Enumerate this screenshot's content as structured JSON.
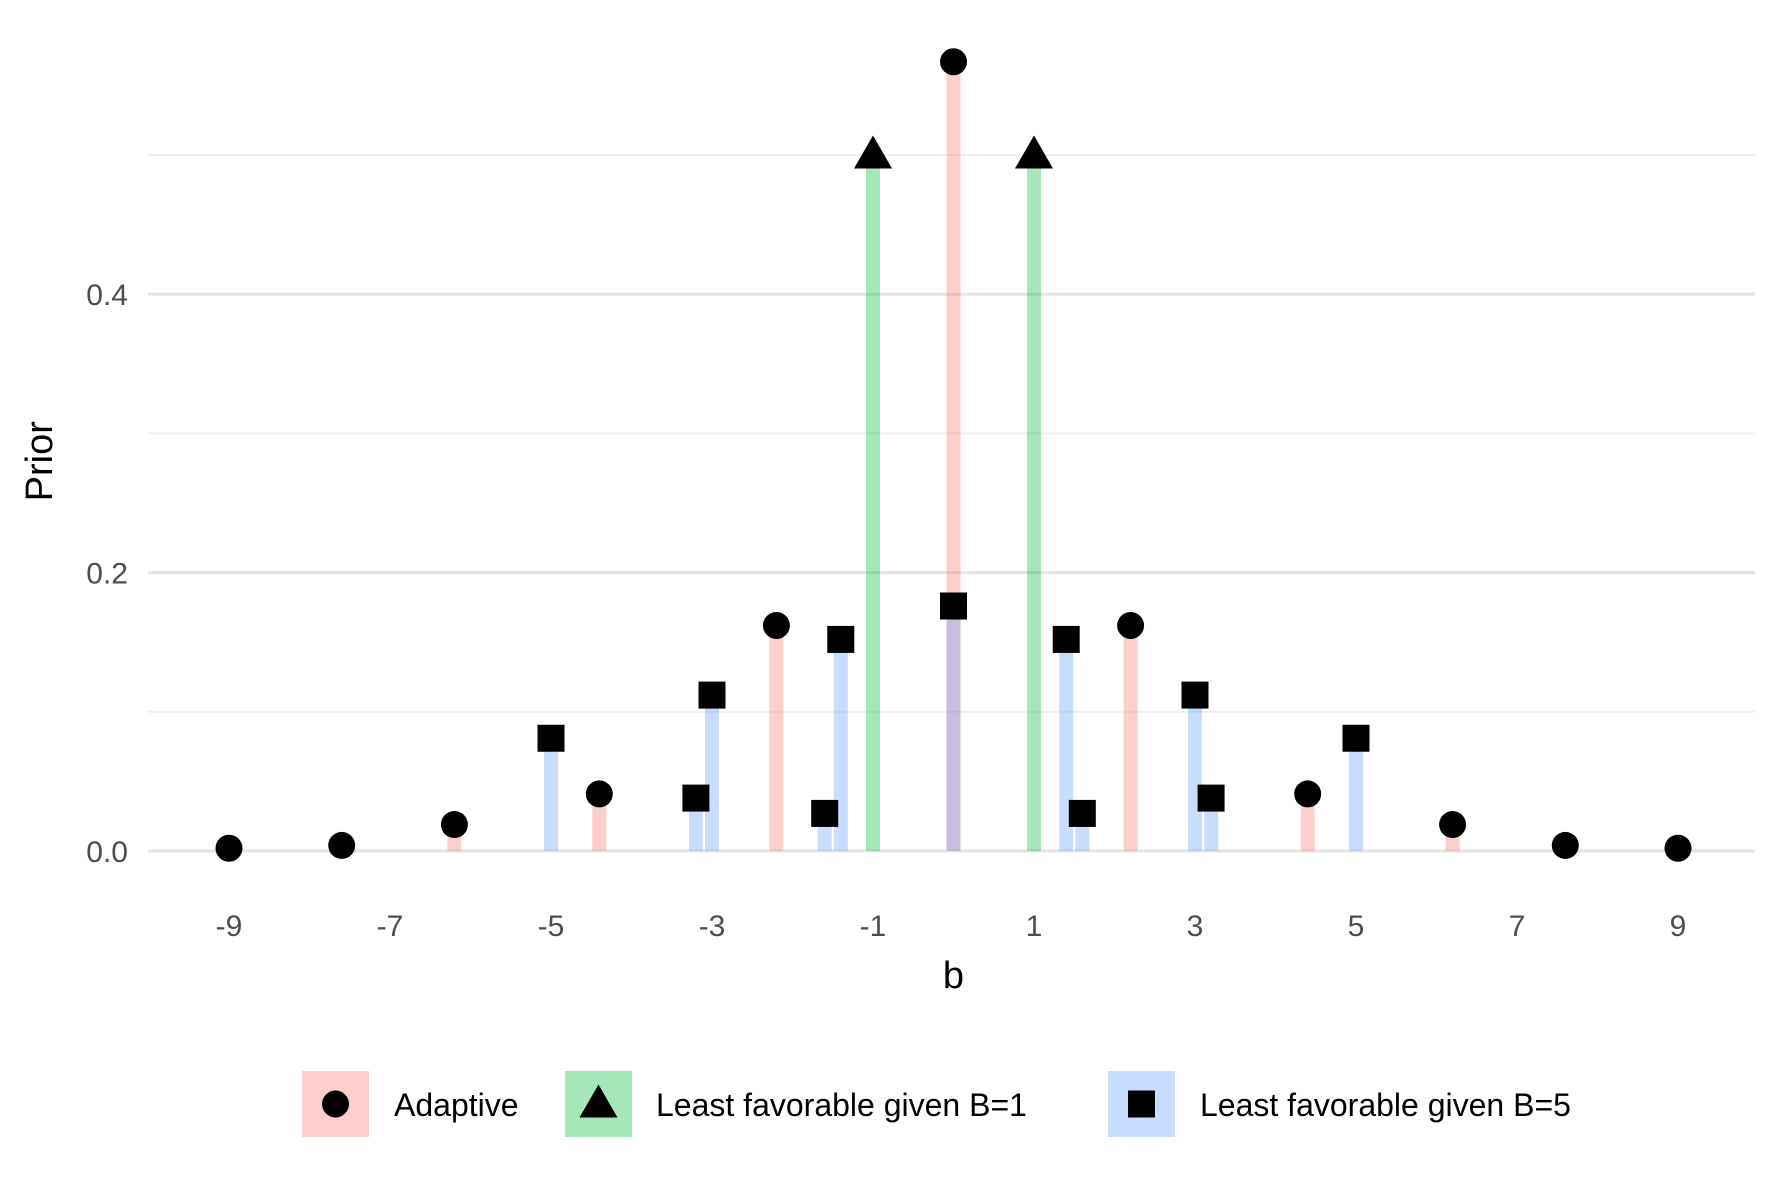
{
  "chart_data": {
    "type": "scatter",
    "xlabel": "b",
    "ylabel": "Prior",
    "xlim": [
      -10,
      10
    ],
    "ylim": [
      -0.02,
      0.57
    ],
    "xticks": [
      -9,
      -7,
      -5,
      -3,
      -1,
      1,
      3,
      5,
      7,
      9
    ],
    "xtick_labels": [
      "-9",
      "-7",
      "-5",
      "-3",
      "-1",
      "1",
      "3",
      "5",
      "7",
      "9"
    ],
    "yticks": [
      0.0,
      0.2,
      0.4
    ],
    "ytick_labels": [
      "0.0",
      "0.2",
      "0.4"
    ],
    "yminor": [
      0.1,
      0.3,
      0.5
    ],
    "grid": true,
    "legend_position": "bottom",
    "series": [
      {
        "name": "Adaptive",
        "marker": "circle",
        "color": "#F8766D",
        "points": [
          {
            "x": -9.0,
            "y": 0.002
          },
          {
            "x": -7.6,
            "y": 0.004
          },
          {
            "x": -6.2,
            "y": 0.019
          },
          {
            "x": -4.4,
            "y": 0.041
          },
          {
            "x": -2.2,
            "y": 0.162
          },
          {
            "x": 0.0,
            "y": 0.567
          },
          {
            "x": 2.2,
            "y": 0.162
          },
          {
            "x": 4.4,
            "y": 0.041
          },
          {
            "x": 6.2,
            "y": 0.019
          },
          {
            "x": 7.6,
            "y": 0.004
          },
          {
            "x": 9.0,
            "y": 0.002
          }
        ]
      },
      {
        "name": "Least favorable given B=1",
        "marker": "triangle",
        "color": "#00BA38",
        "points": [
          {
            "x": -1.0,
            "y": 0.5
          },
          {
            "x": 1.0,
            "y": 0.5
          }
        ]
      },
      {
        "name": "Least favorable given B=5",
        "marker": "square",
        "color": "#619CFF",
        "points": [
          {
            "x": -5.0,
            "y": 0.081
          },
          {
            "x": -3.2,
            "y": 0.038
          },
          {
            "x": -3.0,
            "y": 0.112
          },
          {
            "x": -1.6,
            "y": 0.027
          },
          {
            "x": -1.4,
            "y": 0.152
          },
          {
            "x": 0.0,
            "y": 0.176
          },
          {
            "x": 1.4,
            "y": 0.152
          },
          {
            "x": 1.6,
            "y": 0.027
          },
          {
            "x": 3.0,
            "y": 0.112
          },
          {
            "x": 3.2,
            "y": 0.038
          },
          {
            "x": 5.0,
            "y": 0.081
          }
        ]
      }
    ]
  }
}
